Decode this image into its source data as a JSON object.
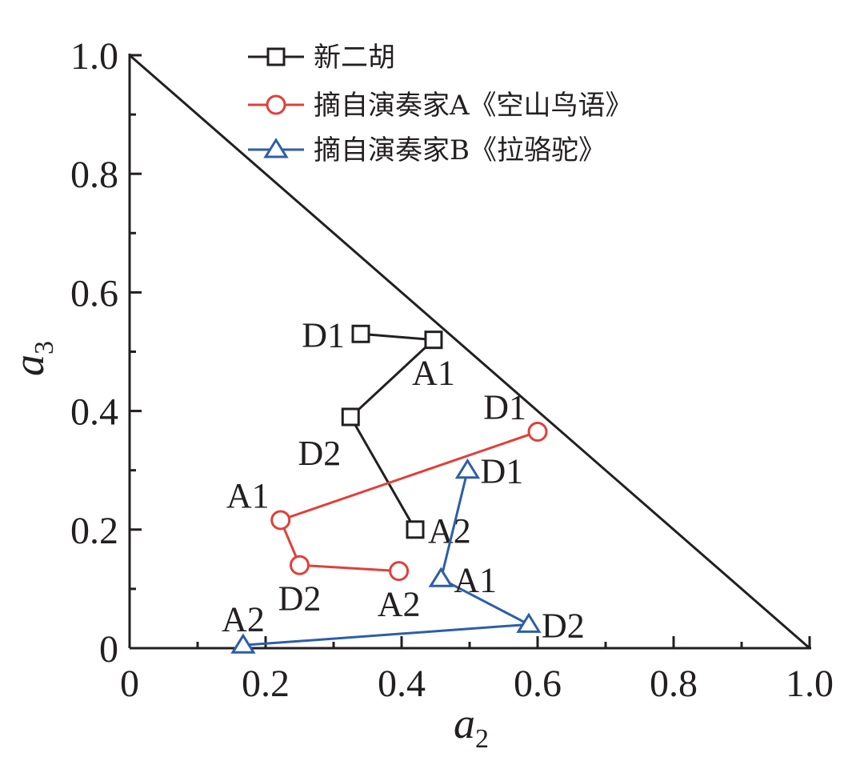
{
  "chart_data": {
    "type": "line",
    "title": "",
    "xlabel": {
      "main": "a",
      "sub": "2"
    },
    "ylabel": {
      "main": "a",
      "sub": "3"
    },
    "xlim": [
      0,
      1.0
    ],
    "ylim": [
      0,
      1.0
    ],
    "x_ticks": [
      "0",
      "0.2",
      "0.4",
      "0.6",
      "0.8",
      "1.0"
    ],
    "y_ticks": [
      "0",
      "0.2",
      "0.4",
      "0.6",
      "0.8",
      "1.0"
    ],
    "x_tick_values": [
      0,
      0.2,
      0.4,
      0.6,
      0.8,
      1.0
    ],
    "y_tick_values": [
      0,
      0.2,
      0.4,
      0.6,
      0.8,
      1.0
    ],
    "legend_position": "top-left",
    "reference_line": {
      "x": [
        0,
        1.0
      ],
      "y": [
        1.0,
        0
      ],
      "color": "#231f20"
    },
    "series": [
      {
        "name": "新二胡",
        "marker": "square",
        "color": "#231f20",
        "points": [
          {
            "label": "D1",
            "x": 0.34,
            "y": 0.53,
            "label_pos": "left"
          },
          {
            "label": "A1",
            "x": 0.447,
            "y": 0.52,
            "label_pos": "below"
          },
          {
            "label": "D2",
            "x": 0.325,
            "y": 0.39,
            "label_pos": "below-left"
          },
          {
            "label": "A2",
            "x": 0.42,
            "y": 0.2,
            "label_pos": "right"
          }
        ]
      },
      {
        "name": "摘自演奏家A《空山鸟语》",
        "marker": "circle",
        "color": "#e0403a",
        "points": [
          {
            "label": "D1",
            "x": 0.6,
            "y": 0.365,
            "label_pos": "above-left"
          },
          {
            "label": "A1",
            "x": 0.222,
            "y": 0.216,
            "label_pos": "above-left"
          },
          {
            "label": "D2",
            "x": 0.25,
            "y": 0.14,
            "label_pos": "below"
          },
          {
            "label": "A2",
            "x": 0.396,
            "y": 0.13,
            "label_pos": "below"
          }
        ]
      },
      {
        "name": "摘自演奏家B《拉骆驼》",
        "marker": "triangle",
        "color": "#2d5ea8",
        "points": [
          {
            "label": "D1",
            "x": 0.497,
            "y": 0.3,
            "label_pos": "right"
          },
          {
            "label": "A1",
            "x": 0.458,
            "y": 0.117,
            "label_pos": "right"
          },
          {
            "label": "D2",
            "x": 0.587,
            "y": 0.04,
            "label_pos": "right"
          },
          {
            "label": "A2",
            "x": 0.167,
            "y": 0.005,
            "label_pos": "above"
          }
        ]
      }
    ]
  }
}
